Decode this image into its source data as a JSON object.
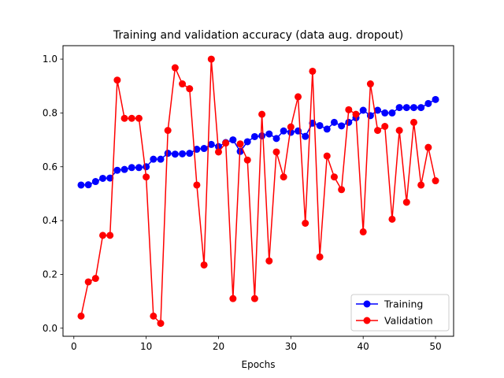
{
  "chart_data": {
    "type": "line",
    "title": "Training and validation accuracy (data aug. dropout)",
    "xlabel": "Epochs",
    "ylabel": "",
    "xlim": [
      -1.5,
      52.5
    ],
    "ylim": [
      -0.03,
      1.05
    ],
    "xticks": [
      0,
      10,
      20,
      30,
      40,
      50
    ],
    "yticks": [
      0.0,
      0.2,
      0.4,
      0.6,
      0.8,
      1.0
    ],
    "grid": false,
    "legend_position": "lower-right",
    "x": [
      1,
      2,
      3,
      4,
      5,
      6,
      7,
      8,
      9,
      10,
      11,
      12,
      13,
      14,
      15,
      16,
      17,
      18,
      19,
      20,
      21,
      22,
      23,
      24,
      25,
      26,
      27,
      28,
      29,
      30,
      31,
      32,
      33,
      34,
      35,
      36,
      37,
      38,
      39,
      40,
      41,
      42,
      43,
      44,
      45,
      46,
      47,
      48,
      49,
      50
    ],
    "series": [
      {
        "name": "Training",
        "color": "#0000ff",
        "values": [
          0.532,
          0.533,
          0.545,
          0.557,
          0.558,
          0.587,
          0.59,
          0.597,
          0.597,
          0.6,
          0.628,
          0.628,
          0.65,
          0.647,
          0.648,
          0.65,
          0.665,
          0.668,
          0.683,
          0.675,
          0.69,
          0.7,
          0.657,
          0.693,
          0.712,
          0.715,
          0.722,
          0.705,
          0.733,
          0.728,
          0.733,
          0.713,
          0.762,
          0.753,
          0.74,
          0.765,
          0.752,
          0.765,
          0.782,
          0.81,
          0.79,
          0.81,
          0.8,
          0.8,
          0.82,
          0.82,
          0.82,
          0.82,
          0.835,
          0.85
        ]
      },
      {
        "name": "Validation",
        "color": "#ff0000",
        "values": [
          0.045,
          0.172,
          0.185,
          0.345,
          0.345,
          0.922,
          0.78,
          0.78,
          0.78,
          0.562,
          0.045,
          0.018,
          0.735,
          0.968,
          0.908,
          0.89,
          0.532,
          0.235,
          1.0,
          0.655,
          0.688,
          0.11,
          0.685,
          0.625,
          0.11,
          0.795,
          0.25,
          0.655,
          0.562,
          0.748,
          0.86,
          0.39,
          0.955,
          0.265,
          0.64,
          0.562,
          0.515,
          0.812,
          0.795,
          0.358,
          0.908,
          0.735,
          0.75,
          0.405,
          0.735,
          0.468,
          0.765,
          0.532,
          0.672,
          0.548
        ]
      }
    ]
  }
}
